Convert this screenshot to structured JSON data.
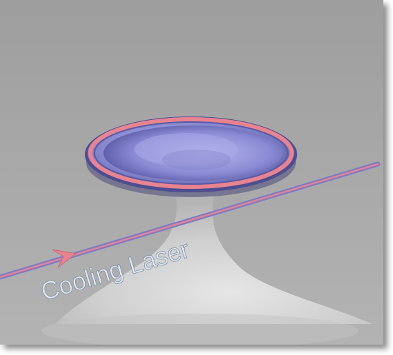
{
  "diagram": {
    "label": "Cooling Laser",
    "colors": {
      "background": "#a9a9a9",
      "pedestal": "#d6d6d6",
      "disk": "#8f8fd8",
      "disk_dark": "#4d4d8f",
      "ring": "#e8838f",
      "laser_outer": "#7b7bc8",
      "laser_inner": "#e8838f",
      "label": "#dfe8f2"
    }
  }
}
